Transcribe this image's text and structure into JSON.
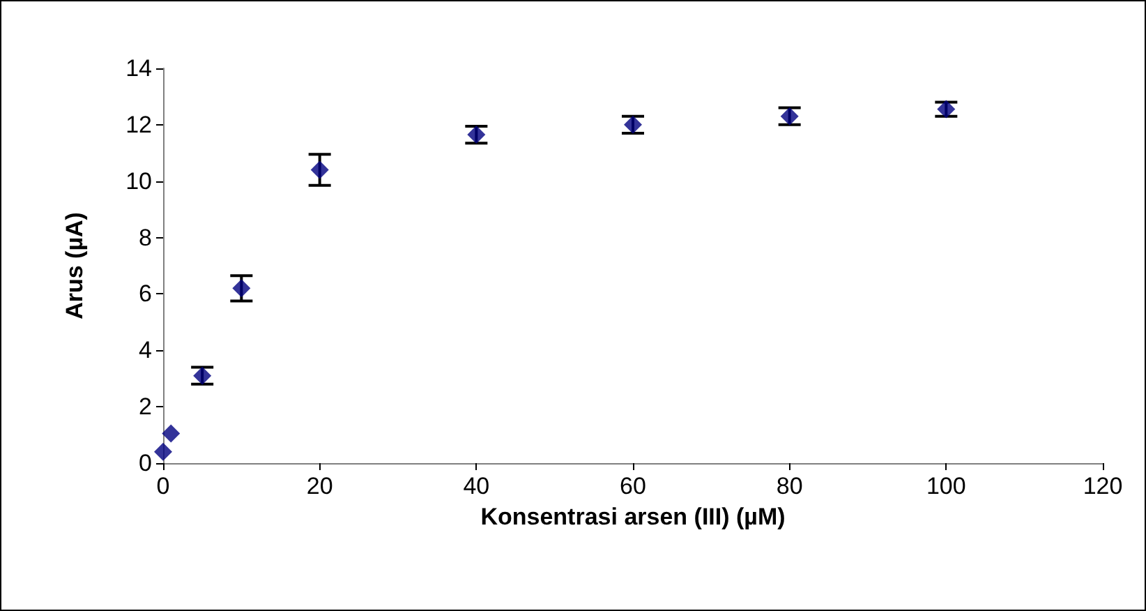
{
  "chart_data": {
    "type": "scatter",
    "xlabel": "Konsentrasi arsen (III) (µM)",
    "ylabel": "Arus (µA)",
    "x": [
      0,
      1,
      5,
      10,
      20,
      40,
      60,
      80,
      100
    ],
    "series": [
      {
        "color": "#000080",
        "values": [
          0.4,
          1.05,
          3.1,
          6.2,
          10.4,
          11.65,
          12.0,
          12.3,
          12.55
        ],
        "errors": [
          null,
          null,
          0.3,
          0.45,
          0.55,
          0.3,
          0.3,
          0.3,
          0.25
        ]
      }
    ],
    "xlim": [
      0,
      120
    ],
    "xticks": [
      0,
      20,
      40,
      60,
      80,
      100,
      120
    ],
    "ylim": [
      0,
      14
    ],
    "yticks": [
      0,
      2,
      4,
      6,
      8,
      10,
      12,
      14
    ],
    "grid": false,
    "marker": "diamond"
  }
}
